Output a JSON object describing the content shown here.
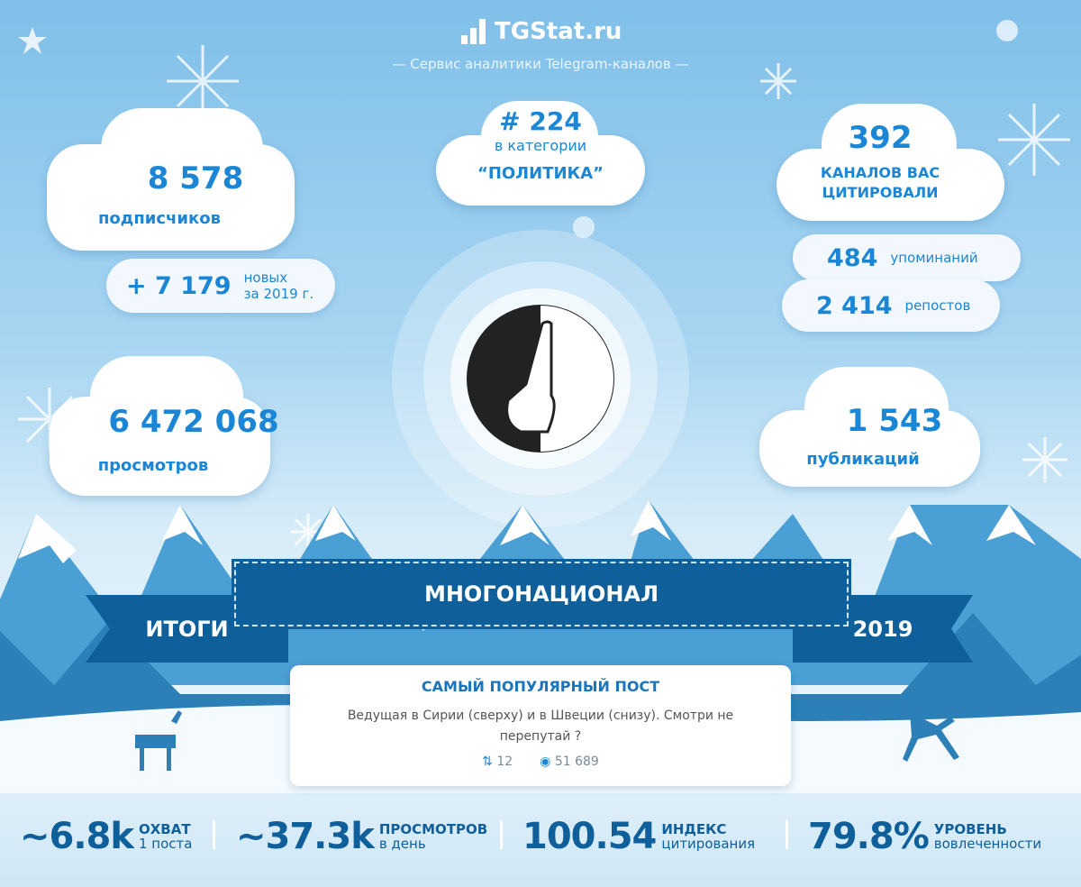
{
  "header": {
    "brand": "TGStat.ru",
    "subtitle": "— Сервис аналитики Telegram-каналов —"
  },
  "subscribers": {
    "value": "8 578",
    "label": "подписчиков"
  },
  "new_subscribers": {
    "value": "+ 7 179",
    "label_line1": "новых",
    "label_line2": "за 2019 г."
  },
  "category": {
    "rank": "# 224",
    "label": "в категории",
    "name": "“ПОЛИТИКА”"
  },
  "citations": {
    "value": "392",
    "label_line1": "КАНАЛОВ ВАС",
    "label_line2": "ЦИТИРОВАЛИ"
  },
  "mentions": {
    "value": "484",
    "label": "упоминаний"
  },
  "reposts": {
    "value": "2 414",
    "label": "репостов"
  },
  "views": {
    "value": "6 472 068",
    "label": "просмотров"
  },
  "publications": {
    "value": "1 543",
    "label": "публикаций"
  },
  "banner": {
    "channel": "МНОГОНАЦИОНАЛ",
    "left": "ИТОГИ",
    "right": "2019"
  },
  "top_post": {
    "title": "САМЫЙ ПОПУЛЯРНЫЙ ПОСТ",
    "text": "Ведущая в Сирии (сверху) и в Швеции (снизу). Смотри не перепутай ?",
    "reposts": "12",
    "views": "51 689",
    "repost_icon": "repost-icon",
    "views_icon": "eye-icon"
  },
  "stats": [
    {
      "value": "~6.8k",
      "label1": "ОХВАТ",
      "label2": "1 поста"
    },
    {
      "value": "~37.3k",
      "label1": "ПРОСМОТРОВ",
      "label2": "в день"
    },
    {
      "value": "100.54",
      "label1": "ИНДЕКС",
      "label2": "цитирования"
    },
    {
      "value": "79.8%",
      "label1": "УРОВЕНЬ",
      "label2": "вовлеченности"
    }
  ],
  "colors": {
    "accent": "#1b86d6",
    "banner": "#0f5f9a"
  }
}
